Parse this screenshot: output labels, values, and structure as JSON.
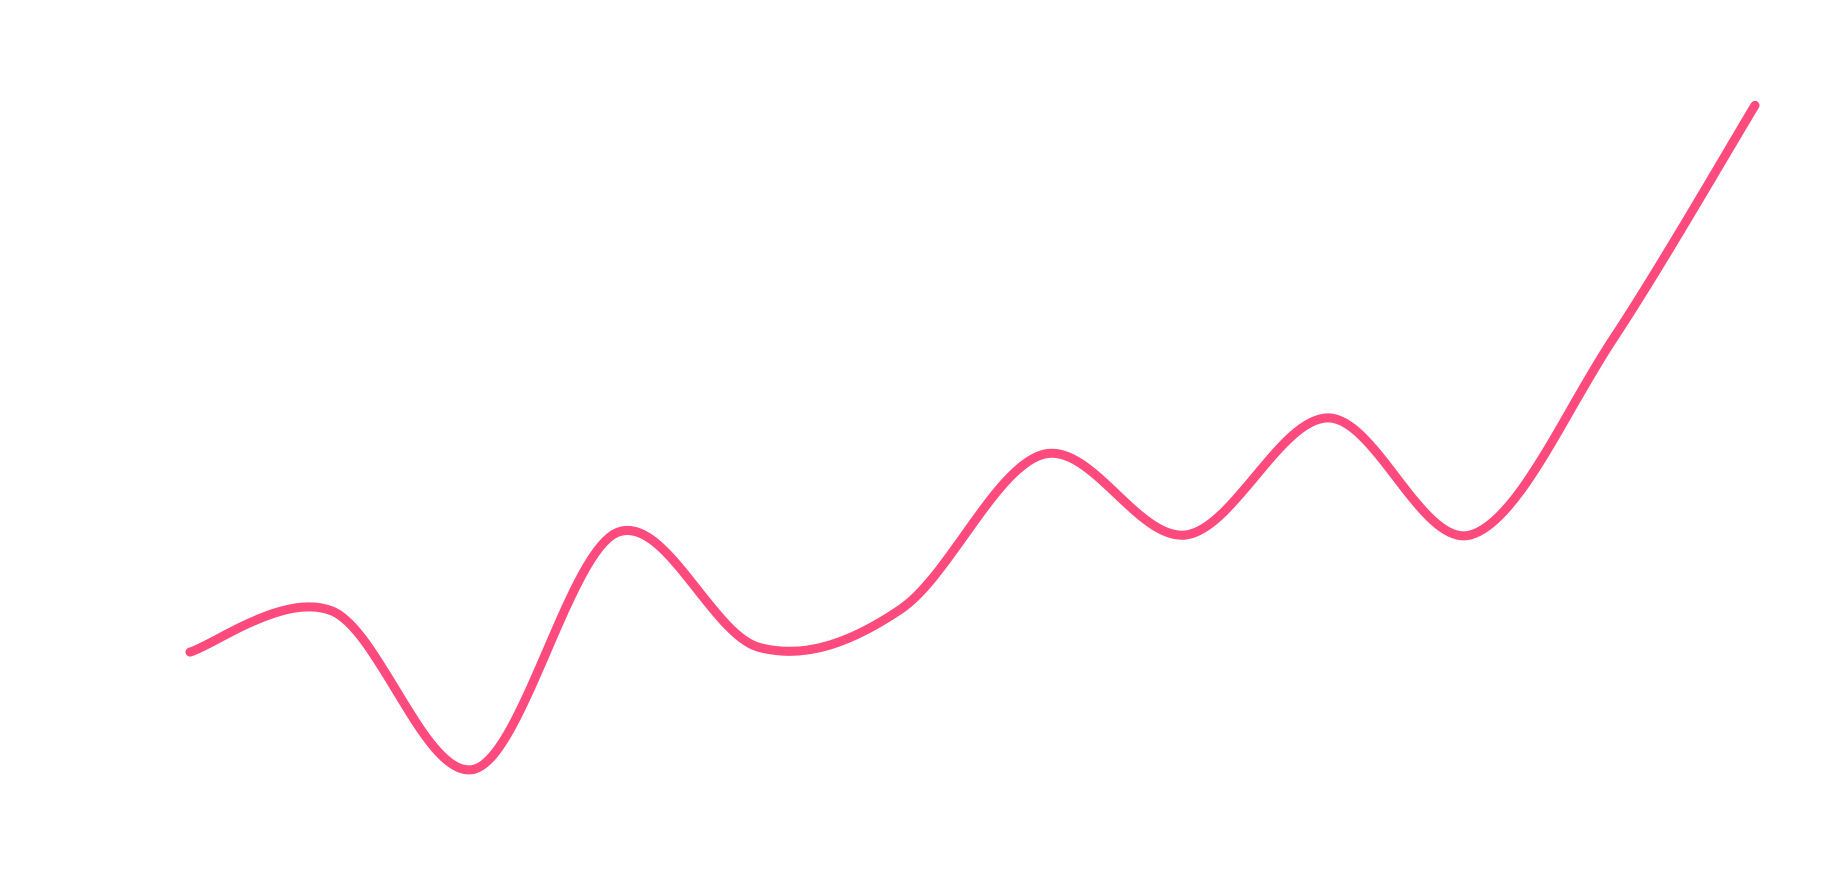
{
  "chart_data": {
    "type": "line",
    "color": "#ff4a7d",
    "values": [
      193,
      228,
      93,
      295,
      197,
      230,
      362,
      293,
      393,
      293,
      460,
      660
    ],
    "ylim": [
      0,
      750
    ]
  }
}
